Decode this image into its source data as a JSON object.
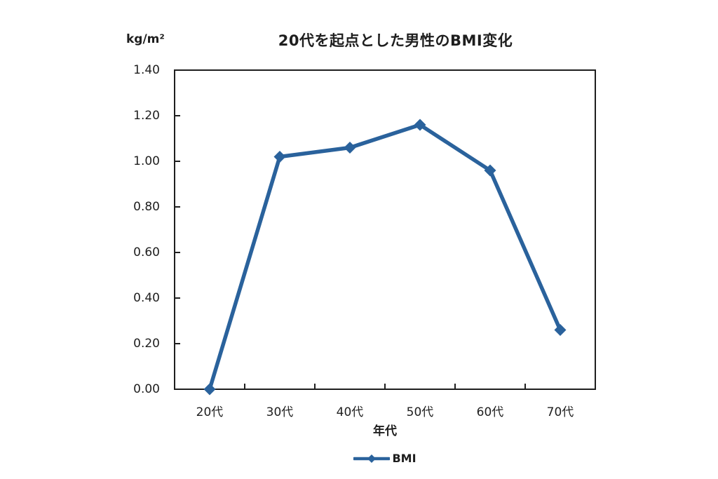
{
  "page": {
    "background": "#ffffff"
  },
  "chart_data": {
    "type": "line",
    "title": "20代を起点とした男性のBMI変化",
    "y_unit_label": "kg/m²",
    "xlabel": "年代",
    "categories": [
      "20代",
      "30代",
      "40代",
      "50代",
      "60代",
      "70代"
    ],
    "series": [
      {
        "name": "BMI",
        "values": [
          0.0,
          1.02,
          1.06,
          1.16,
          0.96,
          0.26
        ],
        "color": "#2A629C",
        "marker": "diamond"
      }
    ],
    "ylim": [
      0.0,
      1.4
    ],
    "ytick_step": 0.2,
    "ytick_labels": [
      "0.00",
      "0.20",
      "0.40",
      "0.60",
      "0.80",
      "1.00",
      "1.20",
      "1.40"
    ],
    "grid": false,
    "legend_position": "bottom",
    "axis_color": "#1e1e1e",
    "text_color": "#1e1e1e"
  }
}
